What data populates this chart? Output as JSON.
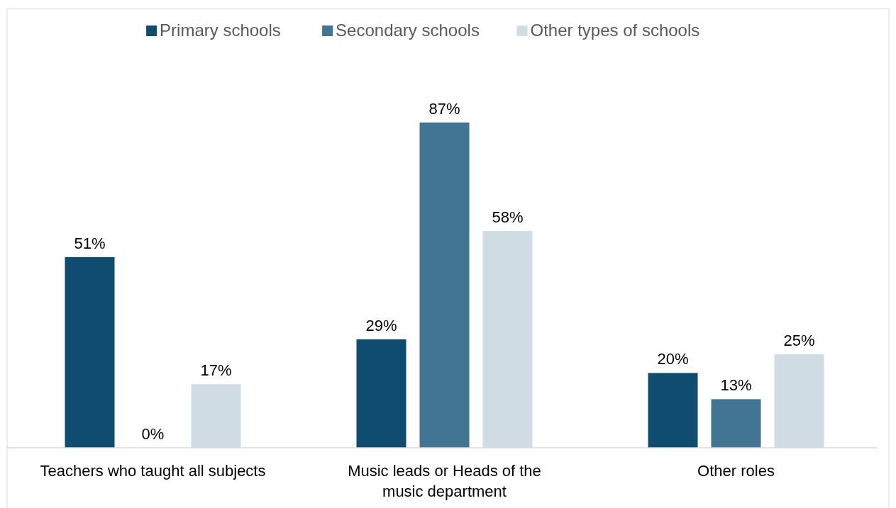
{
  "chart_data": {
    "type": "bar",
    "categories": [
      "Teachers who taught all subjects",
      "Music leads or Heads of the music department",
      "Other roles"
    ],
    "series": [
      {
        "name": "Primary schools",
        "color": "#0f4c70",
        "values": [
          51,
          29,
          20
        ],
        "value_labels": [
          "51%",
          "29%",
          "20%"
        ]
      },
      {
        "name": "Secondary schools",
        "color": "#417593",
        "values": [
          0,
          87,
          13
        ],
        "value_labels": [
          "0%",
          "87%",
          "13%"
        ]
      },
      {
        "name": "Other types of schools",
        "color": "#d0dde4",
        "values": [
          17,
          58,
          25
        ],
        "value_labels": [
          "17%",
          "58%",
          "25%"
        ]
      }
    ],
    "legend": "top"
  }
}
